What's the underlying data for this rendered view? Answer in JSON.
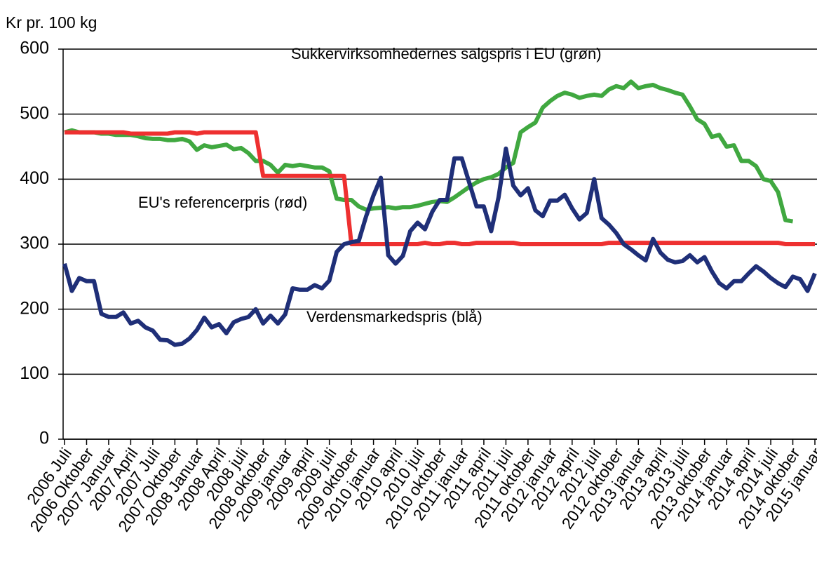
{
  "chart_data": {
    "type": "line",
    "y_label": "Kr pr. 100 kg",
    "annotations": [
      "Sukkervirksomhedernes salgspris i EU (grøn)",
      "EU's referencerpris (rød)",
      "Verdensmarkedspris (blå)"
    ],
    "categories": [
      "2006 Juli",
      null,
      null,
      "2006 Oktober",
      null,
      null,
      "2007 Januar",
      null,
      null,
      "2007 April",
      null,
      null,
      "2007 Juli",
      null,
      null,
      "2007 Oktober",
      null,
      null,
      "2008 Januar",
      null,
      null,
      "2008 April",
      null,
      null,
      "2008 juli",
      null,
      null,
      "2008 oktober",
      null,
      null,
      "2009 januar",
      null,
      null,
      "2009 april",
      null,
      null,
      "2009 juli",
      null,
      null,
      "2009 oktober",
      null,
      null,
      "2010 januar",
      null,
      null,
      "2010 april",
      null,
      null,
      "2010 juli",
      null,
      null,
      "2010 oktober",
      null,
      null,
      "2011 januar",
      null,
      null,
      "2011 april",
      null,
      null,
      "2011 juli",
      null,
      null,
      "2011 oktober",
      null,
      null,
      "2012 januar",
      null,
      null,
      "2012 april",
      null,
      null,
      "2012 juli",
      null,
      null,
      "2012 oktober",
      null,
      null,
      "2013 januar",
      null,
      null,
      "2013 april",
      null,
      null,
      "2013 juli",
      null,
      null,
      "2013 oktober",
      null,
      null,
      "2014 januar",
      null,
      null,
      "2014 april",
      null,
      null,
      "2014 juli",
      null,
      null,
      "2014 oktober",
      null,
      null,
      "2015 januar"
    ],
    "series": [
      {
        "color": "#40a840",
        "values": [
          472,
          475,
          472,
          472,
          472,
          470,
          470,
          468,
          468,
          468,
          466,
          463,
          462,
          462,
          460,
          460,
          462,
          458,
          445,
          452,
          449,
          451,
          453,
          446,
          448,
          440,
          428,
          428,
          422,
          410,
          422,
          420,
          422,
          420,
          418,
          418,
          412,
          370,
          368,
          368,
          358,
          353,
          355,
          356,
          357,
          355,
          357,
          357,
          359,
          362,
          365,
          366,
          365,
          372,
          380,
          388,
          395,
          400,
          403,
          408,
          418,
          425,
          472,
          480,
          487,
          510,
          520,
          528,
          533,
          530,
          525,
          528,
          530,
          528,
          538,
          543,
          540,
          550,
          540,
          543,
          545,
          540,
          537,
          533,
          530,
          512,
          492,
          485,
          465,
          468,
          450,
          452,
          428,
          428,
          420,
          400,
          397,
          380,
          337,
          335,
          null,
          null,
          null
        ]
      },
      {
        "color": "#ee3030",
        "values": [
          472,
          472,
          472,
          472,
          472,
          472,
          472,
          472,
          472,
          470,
          470,
          470,
          470,
          470,
          470,
          472,
          472,
          472,
          470,
          472,
          472,
          472,
          472,
          472,
          472,
          472,
          472,
          405,
          405,
          405,
          405,
          405,
          405,
          405,
          405,
          405,
          405,
          405,
          405,
          300,
          300,
          300,
          300,
          300,
          300,
          300,
          300,
          300,
          300,
          302,
          300,
          300,
          302,
          302,
          300,
          300,
          302,
          302,
          302,
          302,
          302,
          302,
          300,
          300,
          300,
          300,
          300,
          300,
          300,
          300,
          300,
          300,
          300,
          300,
          302,
          302,
          302,
          302,
          302,
          302,
          302,
          302,
          302,
          302,
          302,
          302,
          302,
          302,
          302,
          302,
          302,
          302,
          302,
          302,
          302,
          302,
          302,
          302,
          300,
          300,
          300,
          300,
          300
        ]
      },
      {
        "color": "#1f2f78",
        "values": [
          270,
          228,
          248,
          243,
          243,
          193,
          188,
          188,
          195,
          178,
          182,
          172,
          167,
          153,
          152,
          145,
          147,
          155,
          168,
          187,
          172,
          177,
          163,
          180,
          185,
          188,
          200,
          178,
          190,
          178,
          192,
          232,
          230,
          230,
          237,
          232,
          244,
          288,
          300,
          303,
          305,
          343,
          375,
          402,
          283,
          270,
          282,
          320,
          333,
          323,
          350,
          368,
          368,
          432,
          432,
          395,
          358,
          358,
          320,
          372,
          447,
          390,
          375,
          386,
          352,
          343,
          367,
          367,
          376,
          355,
          338,
          348,
          400,
          340,
          330,
          317,
          300,
          292,
          283,
          275,
          308,
          287,
          276,
          272,
          274,
          283,
          272,
          280,
          258,
          240,
          232,
          243,
          243,
          255,
          266,
          258,
          248,
          240,
          234,
          250,
          246,
          228,
          255
        ]
      }
    ],
    "ylim": [
      0,
      600
    ],
    "yticks": [
      0,
      100,
      200,
      300,
      400,
      500,
      600
    ],
    "grid": true
  }
}
